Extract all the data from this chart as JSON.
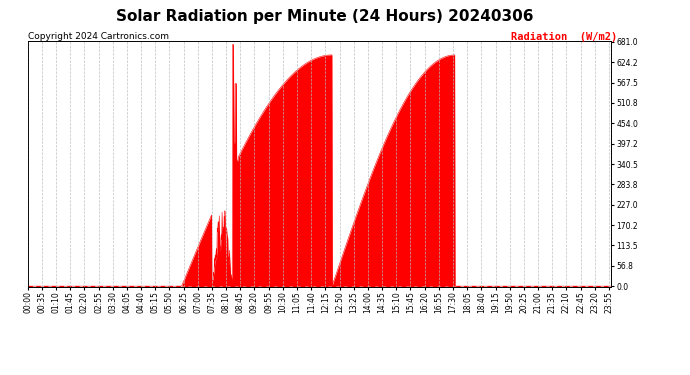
{
  "title": "Solar Radiation per Minute (24 Hours) 20240306",
  "copyright_text": "Copyright 2024 Cartronics.com",
  "ylabel_text": "Radiation  (W/m2)",
  "ylabel_color": "#ff0000",
  "background_color": "#ffffff",
  "plot_bg_color": "#ffffff",
  "fill_color": "#ff0000",
  "line_color": "#ff0000",
  "grid_color": "#bbbbbb",
  "baseline_color": "#ff0000",
  "ymax": 681.0,
  "yticks": [
    0.0,
    56.8,
    113.5,
    170.2,
    227.0,
    283.8,
    340.5,
    397.2,
    454.0,
    510.8,
    567.5,
    624.2,
    681.0
  ],
  "total_minutes": 1440,
  "title_fontsize": 11,
  "copyright_fontsize": 6.5,
  "tick_fontsize": 5.5,
  "ylabel_fontsize": 7.5,
  "xtick_labels": [
    "00:00",
    "00:35",
    "01:10",
    "01:45",
    "02:20",
    "02:55",
    "03:30",
    "04:05",
    "04:40",
    "05:15",
    "05:50",
    "06:25",
    "07:00",
    "07:35",
    "08:10",
    "08:45",
    "09:20",
    "09:55",
    "10:30",
    "11:05",
    "11:40",
    "12:15",
    "12:50",
    "13:25",
    "14:00",
    "14:35",
    "15:10",
    "15:45",
    "16:20",
    "16:55",
    "17:30",
    "18:05",
    "18:40",
    "19:15",
    "19:50",
    "20:25",
    "21:00",
    "21:35",
    "22:10",
    "22:45",
    "23:20",
    "23:55"
  ]
}
